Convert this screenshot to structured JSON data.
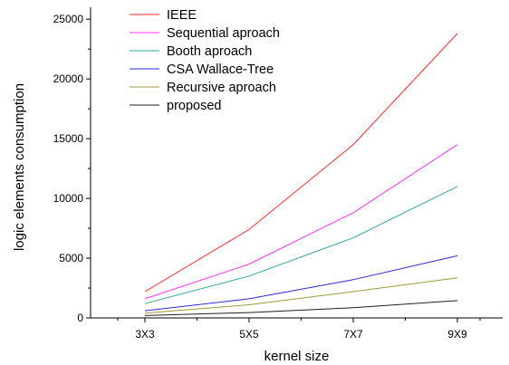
{
  "chart_data": {
    "type": "line",
    "title": "",
    "xlabel": "kernel size",
    "ylabel": "logic elements consumption",
    "categories": [
      "3X3",
      "5X5",
      "7X7",
      "9X9"
    ],
    "ylim": [
      0,
      26000
    ],
    "yticks": [
      0,
      5000,
      10000,
      15000,
      20000,
      25000
    ],
    "grid": false,
    "legend_position": "top-left",
    "series": [
      {
        "name": "IEEE",
        "color": "#ff2a2a",
        "values": [
          2200,
          7400,
          14500,
          23800
        ]
      },
      {
        "name": "Sequential aproach",
        "color": "#ff33ff",
        "values": [
          1600,
          4500,
          8800,
          14500
        ]
      },
      {
        "name": "Booth aproach",
        "color": "#33a3a3",
        "values": [
          1200,
          3500,
          6700,
          11000
        ]
      },
      {
        "name": "CSA Wallace-Tree",
        "color": "#2a2ad8",
        "values": [
          600,
          1600,
          3200,
          5200
        ]
      },
      {
        "name": "Recursive aproach",
        "color": "#a09a3a",
        "values": [
          400,
          1100,
          2200,
          3350
        ]
      },
      {
        "name": "proposed",
        "color": "#202020",
        "values": [
          200,
          450,
          850,
          1450
        ]
      }
    ]
  }
}
